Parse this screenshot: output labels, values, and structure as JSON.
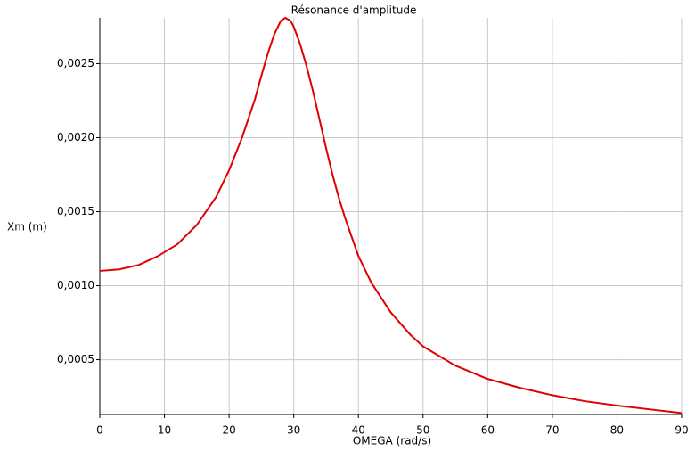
{
  "chart_data": {
    "type": "line",
    "title": "Résonance d'amplitude",
    "x_label": "OMEGA (rad/s)",
    "y_label": "Xm (m)",
    "x": [
      0,
      3,
      6,
      9,
      12,
      15,
      18,
      20,
      22,
      24,
      25,
      26,
      27,
      28,
      28.7,
      29.5,
      30,
      31,
      32,
      33,
      34,
      35,
      36,
      37,
      38,
      40,
      42,
      45,
      48,
      50,
      55,
      60,
      65,
      70,
      75,
      80,
      85,
      90
    ],
    "series": [
      {
        "name": "Xm",
        "color": "#e00000",
        "values": [
          0.0011,
          0.00111,
          0.00114,
          0.0012,
          0.00128,
          0.00141,
          0.0016,
          0.00178,
          0.002,
          0.00226,
          0.00242,
          0.00257,
          0.0027,
          0.00279,
          0.00281,
          0.00279,
          0.00275,
          0.00263,
          0.00248,
          0.00231,
          0.00212,
          0.00193,
          0.00175,
          0.00159,
          0.00145,
          0.0012,
          0.00102,
          0.00082,
          0.00067,
          0.00059,
          0.00046,
          0.00037,
          0.00031,
          0.00026,
          0.00022,
          0.00019,
          0.000165,
          0.00014
        ]
      }
    ],
    "xlim": [
      0,
      90
    ],
    "ylim": [
      0.00013,
      0.00281
    ],
    "xticks": [
      0,
      10,
      20,
      30,
      40,
      50,
      60,
      70,
      80,
      90
    ],
    "yticks": [
      {
        "value": 0.0005,
        "label": "0,0005"
      },
      {
        "value": 0.001,
        "label": "0,0010"
      },
      {
        "value": 0.0015,
        "label": "0,0015"
      },
      {
        "value": 0.002,
        "label": "0,0020"
      },
      {
        "value": 0.0025,
        "label": "0,0025"
      }
    ],
    "grid": true
  }
}
